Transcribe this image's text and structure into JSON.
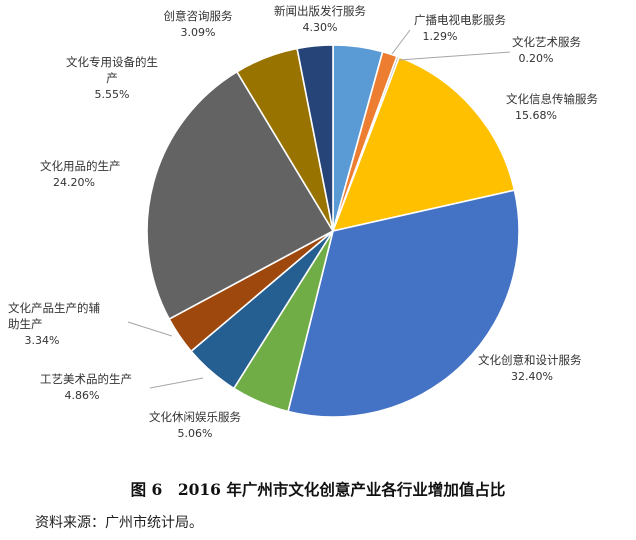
{
  "chart_data": {
    "type": "pie",
    "title": "",
    "slices": [
      {
        "label": "新闻出版发行服务",
        "value": 4.3,
        "pct": "4.30%",
        "color": "#5b9bd5"
      },
      {
        "label": "广播电视电影服务",
        "value": 1.29,
        "pct": "1.29%",
        "color": "#ed7d31"
      },
      {
        "label": "文化艺术服务",
        "value": 0.2,
        "pct": "0.20%",
        "color": "#a5a5a5"
      },
      {
        "label": "文化信息传输服务",
        "value": 15.68,
        "pct": "15.68%",
        "color": "#ffc000"
      },
      {
        "label": "文化创意和设计服务",
        "value": 32.4,
        "pct": "32.40%",
        "color": "#4472c4"
      },
      {
        "label": "文化休闲娱乐服务",
        "value": 5.06,
        "pct": "5.06%",
        "color": "#70ad47"
      },
      {
        "label": "工艺美术品的生产",
        "value": 4.86,
        "pct": "4.86%",
        "color": "#255e91"
      },
      {
        "label": "文化产品生产的辅助生产",
        "value": 3.34,
        "pct": "3.34%",
        "color": "#9e480e"
      },
      {
        "label": "文化用品的生产",
        "value": 24.2,
        "pct": "24.20%",
        "color": "#636363"
      },
      {
        "label": "文化专用设备的生产",
        "value": 5.55,
        "pct": "5.55%",
        "color": "#997300"
      },
      {
        "label": "创意咨询服务",
        "value": 3.09,
        "pct": "3.09%",
        "color": "#264478"
      }
    ]
  },
  "caption": "图 6　2016 年广州市文化创意产业各行业增加值占比",
  "source": "资料来源：广州市统计局。"
}
